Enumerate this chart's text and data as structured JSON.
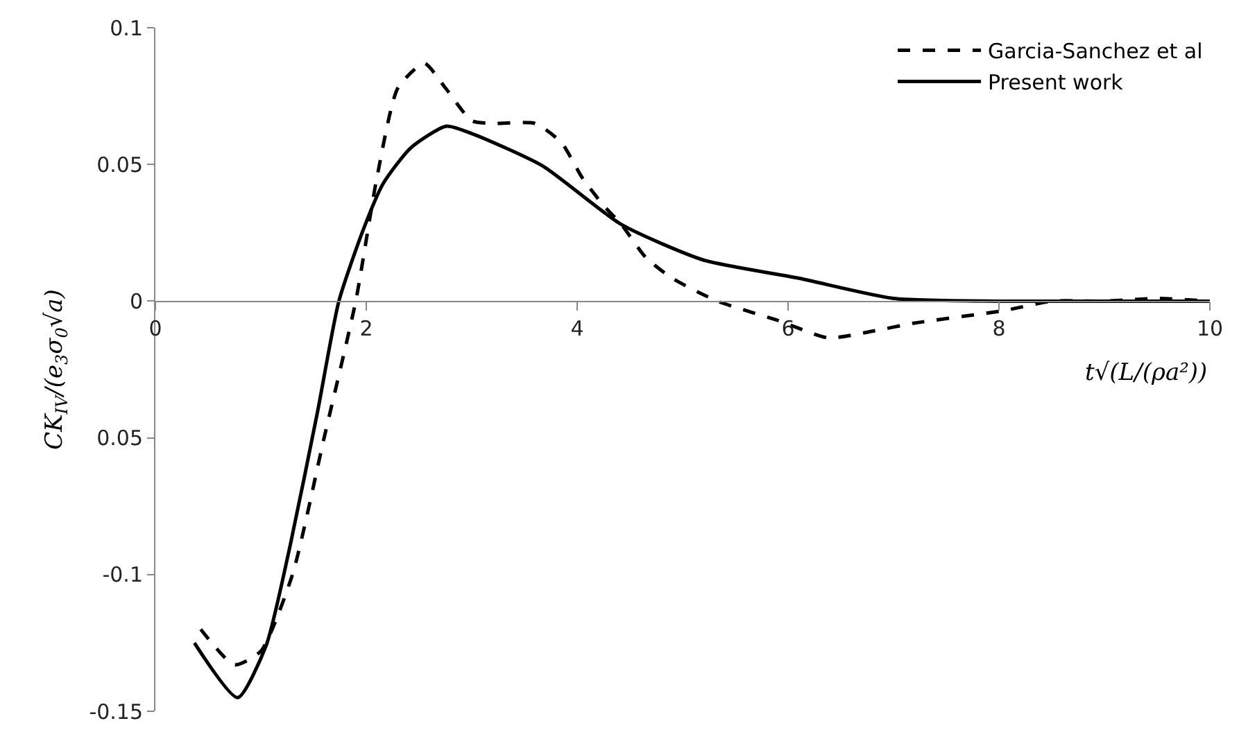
{
  "chart_data": {
    "type": "line",
    "xlabel": "t√(L/(ρa²))",
    "ylabel": "CK$_{IV}$/(e$_{3}$σ$_{0}$√a)",
    "series": [
      {
        "name": "Garcia-Sanchez et al",
        "color": "#000000",
        "line_style": "dashed",
        "x": [
          0.43,
          0.75,
          1.0,
          1.3,
          1.6,
          1.9,
          2.1,
          2.3,
          2.55,
          2.75,
          3.0,
          3.2,
          3.6,
          3.85,
          4.05,
          4.25,
          4.42,
          4.65,
          4.9,
          5.33,
          5.9,
          6.38,
          6.8,
          7.2,
          8.04,
          8.5,
          9.0,
          9.5,
          10.0
        ],
        "values": [
          -0.12,
          -0.133,
          -0.128,
          -0.1,
          -0.05,
          0.0,
          0.045,
          0.078,
          0.087,
          0.078,
          0.066,
          0.065,
          0.065,
          0.058,
          0.045,
          0.035,
          0.028,
          0.016,
          0.0084,
          0.0,
          -0.007,
          -0.0134,
          -0.011,
          -0.008,
          -0.0035,
          0.0,
          0.0,
          0.001,
          0.0
        ]
      },
      {
        "name": "Present work",
        "color": "#000000",
        "line_style": "solid",
        "x": [
          0.37,
          0.78,
          1.05,
          1.28,
          1.54,
          1.74,
          1.97,
          2.16,
          2.42,
          2.76,
          3.02,
          3.67,
          4.42,
          5.2,
          6.1,
          7.0,
          8.0,
          9.0,
          10.0
        ],
        "values": [
          -0.125,
          -0.145,
          -0.126,
          -0.089,
          -0.04,
          0.0,
          0.026,
          0.043,
          0.056,
          0.064,
          0.061,
          0.0495,
          0.028,
          0.015,
          0.0084,
          0.001,
          0.0,
          0.0,
          0.0
        ]
      }
    ],
    "xlim": [
      0,
      10
    ],
    "xticks": [
      0,
      2,
      4,
      6,
      8,
      10
    ],
    "ylim": [
      -0.15,
      0.1
    ],
    "yticks": [
      -0.15,
      -0.1,
      {
        "value": -0.05,
        "label": "0.05"
      },
      0,
      0.05,
      0.1
    ],
    "legend": "top right",
    "marker": "none"
  }
}
